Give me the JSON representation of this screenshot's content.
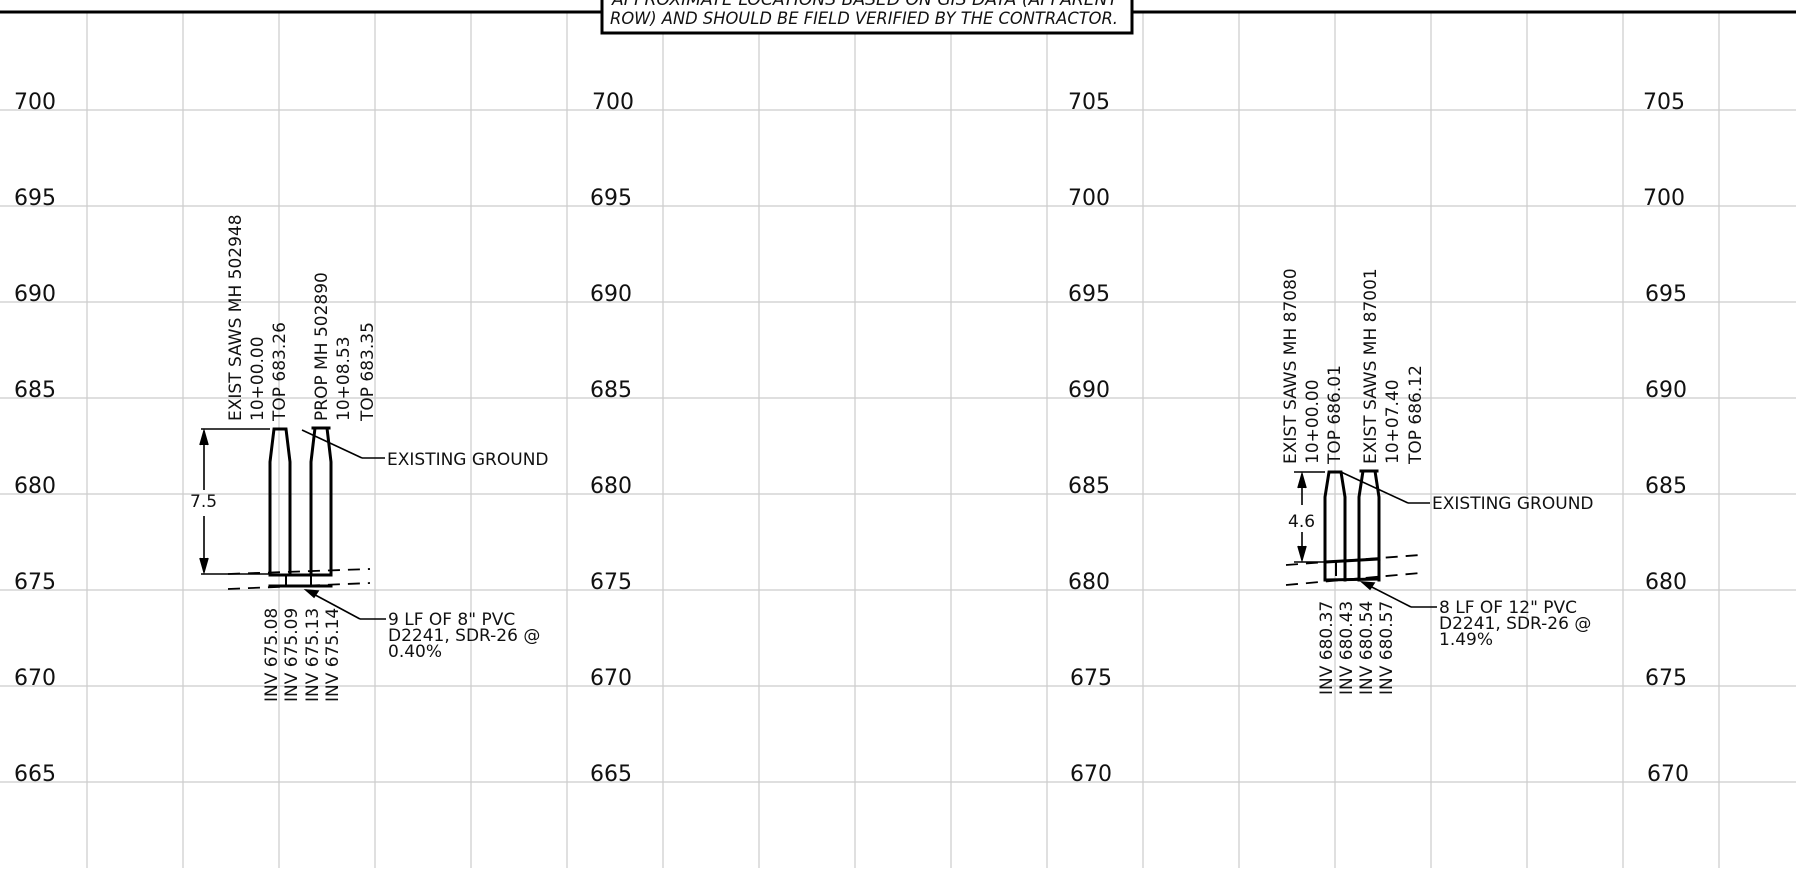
{
  "title_note": {
    "line1": "APPROXIMATE LOCATIONS BASED ON GIS DATA (APPARENT",
    "line2": "ROW) AND SHOULD BE FIELD VERIFIED BY THE CONTRACTOR."
  },
  "profile_left": {
    "elevation_labels": [
      "700",
      "695",
      "690",
      "685",
      "680",
      "675",
      "670",
      "665"
    ],
    "manhole_1": {
      "name": "EXIST SAWS MH 502948",
      "station": "10+00.00",
      "top": "TOP 683.26"
    },
    "manhole_2": {
      "name": "PROP MH 502890",
      "station": "10+08.53",
      "top": "TOP 683.35"
    },
    "depth": "7.5",
    "ground_label": "EXISTING GROUND",
    "pipe_note": [
      "9 LF OF 8\" PVC",
      "D2241, SDR-26 @",
      "0.40%"
    ],
    "inverts": [
      "INV 675.08",
      "INV 675.09",
      "INV 675.13",
      "INV 675.14"
    ]
  },
  "profile_left_right_scale": [
    "700",
    "695",
    "690",
    "685",
    "680",
    "675",
    "670",
    "665"
  ],
  "profile_right": {
    "elevation_labels": [
      "705",
      "700",
      "695",
      "690",
      "685",
      "680",
      "675",
      "670"
    ],
    "manhole_1": {
      "name": "EXIST SAWS MH 87080",
      "station": "10+00.00",
      "top": "TOP 686.01"
    },
    "manhole_2": {
      "name": "EXIST SAWS MH 87001",
      "station": "10+07.40",
      "top": "TOP 686.12"
    },
    "depth": "4.6",
    "ground_label": "EXISTING GROUND",
    "pipe_note": [
      "8 LF OF 12\" PVC",
      "D2241, SDR-26 @",
      "1.49%"
    ],
    "inverts": [
      "INV 680.37",
      "INV 680.43",
      "INV 680.54",
      "INV 680.57"
    ]
  },
  "profile_right_right_scale": [
    "705",
    "700",
    "695",
    "690",
    "685",
    "680",
    "675",
    "670"
  ]
}
